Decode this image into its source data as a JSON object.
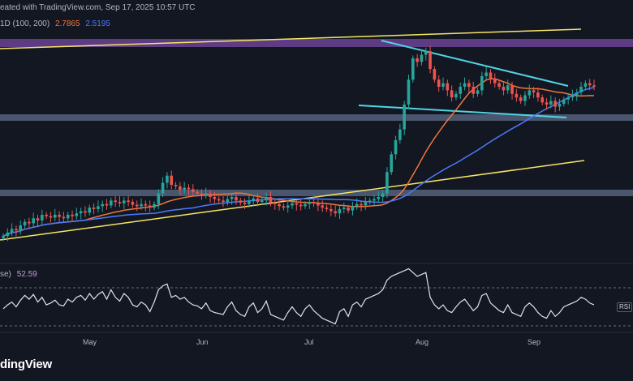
{
  "header": {
    "text": "eated with TradingView.com, Sep 17, 2025 10:57 UTC"
  },
  "ma_legend": {
    "label": "1D (100, 200)",
    "ma100": "2.7865",
    "ma200": "2.5195"
  },
  "rsi_legend": {
    "label": "se)",
    "value": "52.59",
    "tag": "RSI"
  },
  "months": [
    "May",
    "Jun",
    "Jul",
    "Aug",
    "Sep"
  ],
  "branding": {
    "name": "dingView"
  },
  "colors": {
    "background": "#131722",
    "up_candle": "#26a69a",
    "down_candle": "#ef5350",
    "ma100": "#f0763c",
    "ma200": "#4a7bff",
    "channel": "#f5e665",
    "wedge": "#4fd4e6",
    "support_zone": "#8fa3c9",
    "resistance_zone": "#9c5bd6",
    "rsi": "#dfe2e8"
  },
  "chart_data": {
    "type": "candlestick",
    "title": "",
    "subtitle": "",
    "x_axis_labels": [
      "May",
      "Jun",
      "Jul",
      "Aug",
      "Sep"
    ],
    "annotations": [
      "channel upper trendline",
      "channel lower trendline",
      "descending wedge upper",
      "descending wedge lower",
      "support zone",
      "resistance zone",
      "mid support zone"
    ],
    "series": [
      {
        "name": "MA 100",
        "last": 2.7865
      },
      {
        "name": "MA 200",
        "last": 2.5195
      },
      {
        "name": "RSI",
        "last": 52.59
      }
    ],
    "price_close": [
      1.0,
      1.05,
      1.1,
      1.08,
      1.15,
      1.2,
      1.18,
      1.25,
      1.22,
      1.3,
      1.28,
      1.26,
      1.3,
      1.27,
      1.25,
      1.3,
      1.28,
      1.32,
      1.35,
      1.33,
      1.4,
      1.38,
      1.42,
      1.45,
      1.43,
      1.5,
      1.48,
      1.46,
      1.5,
      1.48,
      1.44,
      1.42,
      1.45,
      1.43,
      1.4,
      1.45,
      1.6,
      1.75,
      1.85,
      1.72,
      1.7,
      1.65,
      1.68,
      1.66,
      1.62,
      1.6,
      1.58,
      1.6,
      1.55,
      1.52,
      1.5,
      1.48,
      1.52,
      1.55,
      1.5,
      1.47,
      1.45,
      1.5,
      1.53,
      1.48,
      1.5,
      1.55,
      1.47,
      1.45,
      1.42,
      1.4,
      1.43,
      1.46,
      1.44,
      1.42,
      1.45,
      1.48,
      1.46,
      1.43,
      1.4,
      1.38,
      1.35,
      1.32,
      1.38,
      1.4,
      1.36,
      1.42,
      1.45,
      1.43,
      1.48,
      1.5,
      1.52,
      1.55,
      1.6,
      1.9,
      2.15,
      2.35,
      2.5,
      2.85,
      3.2,
      3.5,
      3.45,
      3.55,
      3.6,
      3.35,
      3.2,
      3.1,
      3.15,
      3.05,
      2.95,
      3.0,
      3.1,
      3.15,
      3.1,
      3.0,
      3.05,
      3.25,
      3.3,
      3.22,
      3.15,
      3.1,
      3.05,
      3.12,
      3.0,
      2.95,
      2.9,
      2.98,
      3.05,
      3.02,
      2.95,
      2.88,
      2.85,
      2.9,
      2.82,
      2.86,
      2.92,
      2.95,
      2.98,
      3.02,
      3.1,
      3.15,
      3.12,
      3.1
    ],
    "rsi_values": [
      48,
      52,
      55,
      50,
      57,
      62,
      58,
      63,
      55,
      60,
      52,
      54,
      57,
      52,
      51,
      58,
      55,
      60,
      62,
      57,
      64,
      58,
      63,
      66,
      58,
      68,
      60,
      56,
      64,
      60,
      52,
      50,
      55,
      52,
      45,
      55,
      68,
      72,
      74,
      60,
      62,
      58,
      60,
      55,
      52,
      51,
      48,
      54,
      46,
      44,
      43,
      42,
      50,
      55,
      46,
      42,
      40,
      50,
      54,
      44,
      48,
      56,
      42,
      40,
      38,
      36,
      44,
      50,
      44,
      40,
      48,
      52,
      46,
      42,
      38,
      36,
      34,
      32,
      45,
      48,
      40,
      52,
      55,
      50,
      58,
      60,
      62,
      64,
      68,
      78,
      82,
      84,
      86,
      88,
      90,
      86,
      82,
      84,
      86,
      60,
      52,
      48,
      52,
      46,
      44,
      50,
      55,
      58,
      52,
      46,
      50,
      62,
      64,
      54,
      50,
      46,
      44,
      52,
      44,
      42,
      40,
      50,
      54,
      50,
      44,
      40,
      38,
      46,
      40,
      44,
      50,
      52,
      54,
      56,
      60,
      58,
      54,
      52
    ]
  }
}
